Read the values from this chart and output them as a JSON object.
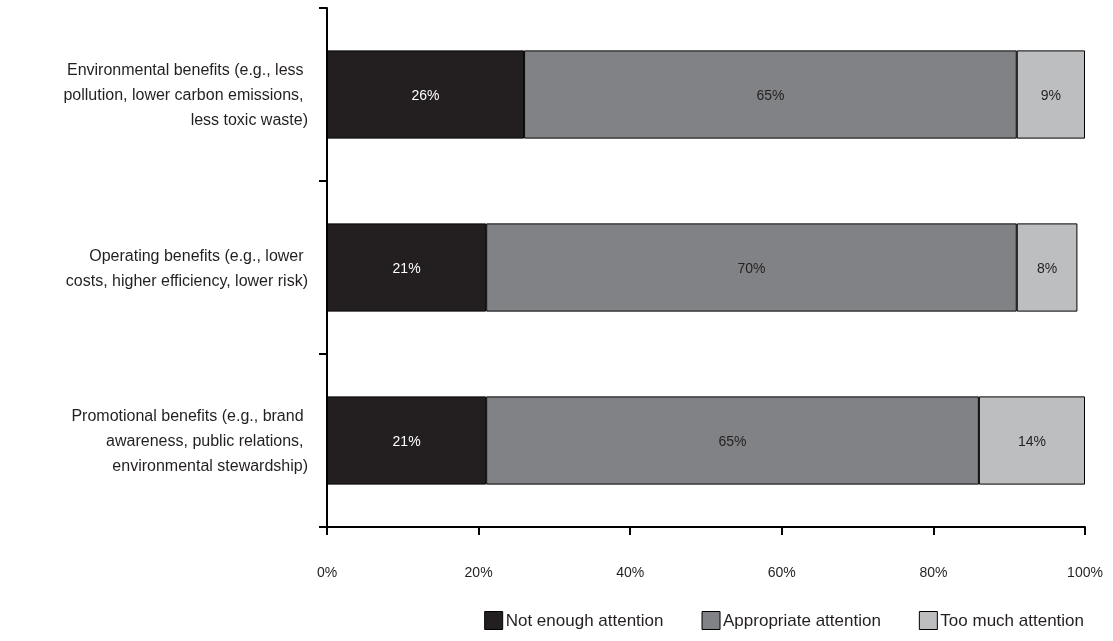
{
  "chart_data": {
    "type": "bar",
    "orientation": "horizontal",
    "stacked": true,
    "categories": [
      "Environmental benefits (e.g., less pollution, lower carbon emissions, less toxic waste)",
      "Operating benefits (e.g., lower costs, higher efficiency, lower risk)",
      "Promotional benefits (e.g., brand awareness, public relations, environmental stewardship)"
    ],
    "series": [
      {
        "name": "Not enough attention",
        "color": "#231f20",
        "values": [
          26,
          21,
          21
        ],
        "value_labels": [
          "26%",
          "21%",
          "21%"
        ]
      },
      {
        "name": "Appropriate attention",
        "color": "#808285",
        "values": [
          65,
          70,
          65
        ],
        "value_labels": [
          "65%",
          "70%",
          "65%"
        ]
      },
      {
        "name": "Too much attention",
        "color": "#bcbec0",
        "values": [
          9,
          8,
          14
        ],
        "value_labels": [
          "9%",
          "8%",
          "14%"
        ]
      }
    ],
    "xlim": [
      0,
      100
    ],
    "xticks": [
      {
        "value": 0,
        "label": "0%"
      },
      {
        "value": 20,
        "label": "20%"
      },
      {
        "value": 40,
        "label": "40%"
      },
      {
        "value": 60,
        "label": "60%"
      },
      {
        "value": 80,
        "label": "80%"
      },
      {
        "value": 100,
        "label": "100%"
      }
    ],
    "grid": false,
    "legend": "bottom"
  }
}
